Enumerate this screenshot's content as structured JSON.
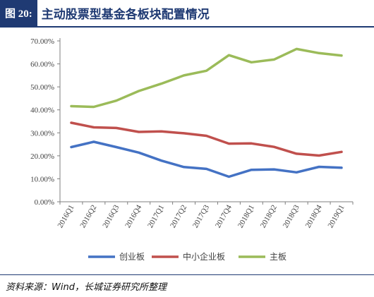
{
  "header": {
    "figure_label": "图 20:",
    "title": "主动股票型基金各板块配置情况"
  },
  "source": "资料来源：Wind，长城证券研究所整理",
  "colors": {
    "header_bg": "#1f3a73",
    "series": [
      "#4472c4",
      "#c0504d",
      "#9bbb59"
    ]
  },
  "chart_data": {
    "type": "line",
    "title": "",
    "xlabel": "",
    "ylabel": "",
    "categories": [
      "2016Q1",
      "2016Q2",
      "2016Q3",
      "2016Q4",
      "2017Q1",
      "2017Q2",
      "2017Q3",
      "2017Q4",
      "2018Q1",
      "2018Q2",
      "2018Q3",
      "2018Q4",
      "2019Q1"
    ],
    "yticks": [
      "0.00%",
      "10.00%",
      "20.00%",
      "30.00%",
      "40.00%",
      "50.00%",
      "60.00%",
      "70.00%"
    ],
    "ylim": [
      0,
      70
    ],
    "grid": false,
    "legend_position": "bottom",
    "series": [
      {
        "name": "创业板",
        "values": [
          23.8,
          26.1,
          23.8,
          21.4,
          17.9,
          15.1,
          14.3,
          10.9,
          13.9,
          14.1,
          12.8,
          15.2,
          14.8
        ]
      },
      {
        "name": "中小企业板",
        "values": [
          34.4,
          32.4,
          32.1,
          30.4,
          30.6,
          29.8,
          28.7,
          25.3,
          25.4,
          23.9,
          20.9,
          20.1,
          21.7
        ]
      },
      {
        "name": "主板",
        "values": [
          41.6,
          41.3,
          44.0,
          48.2,
          51.4,
          55.0,
          57.0,
          63.8,
          60.7,
          61.9,
          66.5,
          64.7,
          63.6
        ]
      }
    ]
  }
}
